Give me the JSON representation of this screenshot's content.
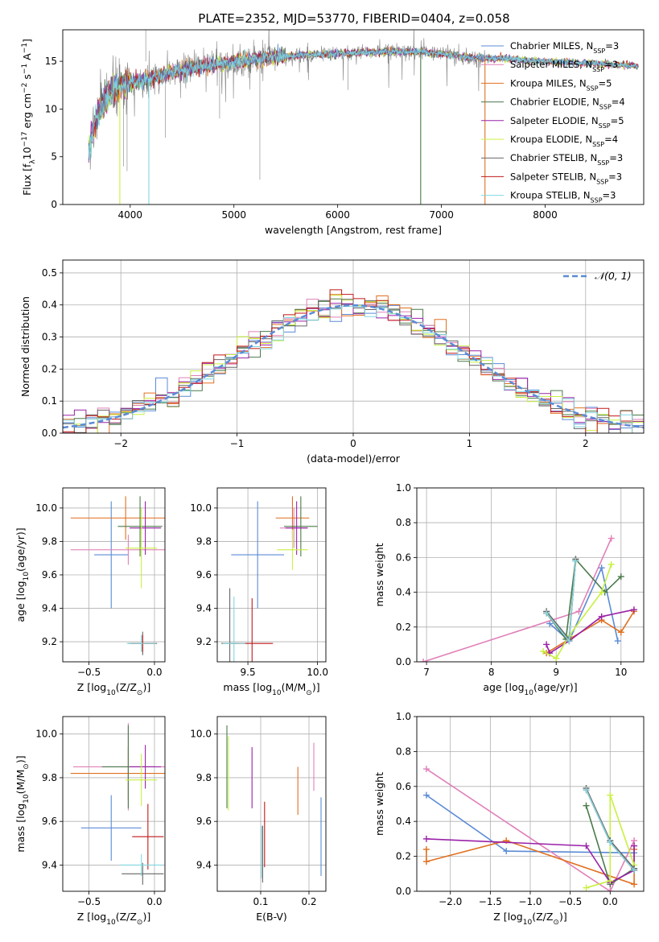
{
  "figure": {
    "title": "PLATE=2352, MJD=53770, FIBERID=0404, z=0.058"
  },
  "colors": {
    "chabrier_miles": "#5b8bd6",
    "salpeter_miles": "#e080b8",
    "kroupa_miles": "#e07020",
    "chabrier_elodie": "#4a7a4a",
    "salpeter_elodie": "#9a22a8",
    "kroupa_elodie": "#c8f040",
    "chabrier_stelib": "#666666",
    "salpeter_stelib": "#c01818",
    "kroupa_stelib": "#80d8e0",
    "data": "#808080",
    "gaussian": "#5b8bd6"
  },
  "chart_data": [
    {
      "id": "spectrum",
      "type": "line",
      "xlabel": "wavelength [Angstrom, rest frame]",
      "ylabel_parts": [
        "Flux [f",
        "λ",
        "10",
        "−17",
        " erg cm",
        "−2",
        " s",
        "−1",
        " A",
        "−1",
        "]"
      ],
      "xlim": [
        3350,
        8950
      ],
      "ylim": [
        0,
        18.3
      ],
      "xticks": [
        4000,
        5000,
        6000,
        7000,
        8000
      ],
      "yticks": [
        0,
        5,
        10,
        15
      ],
      "legend_position": "upper-right",
      "legend": [
        {
          "label": "Chabrier MILES, N",
          "sub": "SSP",
          "eq": "=3",
          "color_key": "chabrier_miles"
        },
        {
          "label": "Salpeter MILES, N",
          "sub": "SSP",
          "eq": "=3",
          "color_key": "salpeter_miles"
        },
        {
          "label": "Kroupa MILES, N",
          "sub": "SSP",
          "eq": "=5",
          "color_key": "kroupa_miles"
        },
        {
          "label": "Chabrier ELODIE, N",
          "sub": "SSP",
          "eq": "=4",
          "color_key": "chabrier_elodie"
        },
        {
          "label": "Salpeter ELODIE, N",
          "sub": "SSP",
          "eq": "=5",
          "color_key": "salpeter_elodie"
        },
        {
          "label": "Kroupa ELODIE, N",
          "sub": "SSP",
          "eq": "=4",
          "color_key": "kroupa_elodie"
        },
        {
          "label": "Chabrier STELIB, N",
          "sub": "SSP",
          "eq": "=3",
          "color_key": "chabrier_stelib"
        },
        {
          "label": "Salpeter STELIB, N",
          "sub": "SSP",
          "eq": "=3",
          "color_key": "salpeter_stelib"
        },
        {
          "label": "Kroupa STELIB, N",
          "sub": "SSP",
          "eq": "=3",
          "color_key": "kroupa_stelib"
        }
      ],
      "continuum_points": [
        [
          3600,
          6
        ],
        [
          3650,
          8
        ],
        [
          3700,
          10
        ],
        [
          3800,
          11.5
        ],
        [
          3900,
          12.5
        ],
        [
          4000,
          12.8
        ],
        [
          4100,
          13
        ],
        [
          4200,
          13.2
        ],
        [
          4400,
          13.8
        ],
        [
          4600,
          14.3
        ],
        [
          4800,
          14.7
        ],
        [
          5000,
          14.9
        ],
        [
          5200,
          15.2
        ],
        [
          5400,
          15.4
        ],
        [
          5600,
          15.6
        ],
        [
          5800,
          15.7
        ],
        [
          6000,
          15.8
        ],
        [
          6200,
          15.9
        ],
        [
          6500,
          16
        ],
        [
          6800,
          16
        ],
        [
          7000,
          15.8
        ],
        [
          7200,
          15.5
        ],
        [
          7400,
          15.3
        ],
        [
          7600,
          15.3
        ],
        [
          7800,
          15.1
        ],
        [
          8000,
          15
        ],
        [
          8200,
          14.9
        ],
        [
          8400,
          14.8
        ],
        [
          8600,
          14.7
        ],
        [
          8900,
          14.5
        ]
      ],
      "data_range": [
        3600,
        7450
      ],
      "model_range": [
        3600,
        8900
      ],
      "model_drops": [
        {
          "color_key": "kroupa_elodie",
          "x": 3900
        },
        {
          "color_key": "kroupa_stelib",
          "x": 4180
        },
        {
          "color_key": "chabrier_elodie",
          "x": 6800
        },
        {
          "color_key": "kroupa_miles",
          "x": 7420
        }
      ]
    },
    {
      "id": "residuals",
      "type": "line",
      "xlabel": "(data-model)/error",
      "ylabel": "Normed distribution",
      "xlim": [
        -2.5,
        2.5
      ],
      "ylim": [
        0,
        0.54
      ],
      "xticks": [
        -2,
        -1,
        0,
        1,
        2
      ],
      "yticks": [
        0.0,
        0.1,
        0.2,
        0.3,
        0.4,
        0.5
      ],
      "grid": true,
      "legend_position": "upper-right",
      "legend": [
        {
          "label": "𝒩(0, 1)",
          "color_key": "gaussian"
        }
      ],
      "bin_width": 0.1
    },
    {
      "id": "age_vs_Z",
      "type": "scatter",
      "xlabel": "Z [log10(Z/Z⊙)]",
      "ylabel": "age  [log10(age/yr)]",
      "xlim": [
        -0.7,
        0.08
      ],
      "ylim": [
        9.08,
        10.12
      ],
      "xticks": [
        -0.5,
        0.0
      ],
      "yticks": [
        9.2,
        9.4,
        9.6,
        9.8,
        10.0
      ],
      "grid": true,
      "points": [
        {
          "color_key": "chabrier_miles",
          "x": -0.33,
          "y": 9.72,
          "xerr": 0.13,
          "yerr": 0.32
        },
        {
          "color_key": "salpeter_miles",
          "x": -0.2,
          "y": 9.75,
          "xerr": 0.44,
          "yerr": 0.09
        },
        {
          "color_key": "kroupa_miles",
          "x": -0.22,
          "y": 9.94,
          "xerr": 0.42,
          "yerr": 0.13
        },
        {
          "color_key": "chabrier_elodie",
          "x": -0.11,
          "y": 9.89,
          "xerr": 0.17,
          "yerr": 0.18
        },
        {
          "color_key": "salpeter_elodie",
          "x": -0.07,
          "y": 9.88,
          "xerr": 0.12,
          "yerr": 0.16
        },
        {
          "color_key": "kroupa_elodie",
          "x": -0.1,
          "y": 9.76,
          "xerr": 0.12,
          "yerr": 0.24
        },
        {
          "color_key": "chabrier_stelib",
          "x": -0.09,
          "y": 9.19,
          "xerr": 0.11,
          "yerr": 0.07
        },
        {
          "color_key": "salpeter_stelib",
          "x": -0.09,
          "y": 9.19,
          "xerr": 0.09,
          "yerr": 0.05
        },
        {
          "color_key": "kroupa_stelib",
          "x": -0.1,
          "y": 9.19,
          "xerr": 0.11,
          "yerr": 0.05
        }
      ]
    },
    {
      "id": "age_vs_mass",
      "type": "scatter",
      "xlabel": "mass [log10(M/M⊙)]",
      "xlim": [
        9.28,
        10.06
      ],
      "ylim": [
        9.08,
        10.12
      ],
      "xticks": [
        9.5,
        10.0
      ],
      "yticks": [
        9.2,
        9.4,
        9.6,
        9.8,
        10.0
      ],
      "grid": true,
      "points": [
        {
          "color_key": "chabrier_miles",
          "x": 9.57,
          "y": 9.72,
          "xerr": 0.19,
          "yerr": 0.32
        },
        {
          "color_key": "salpeter_miles",
          "x": 9.83,
          "y": 9.88,
          "xerr": 0.1,
          "yerr": 0.12
        },
        {
          "color_key": "kroupa_miles",
          "x": 9.82,
          "y": 9.94,
          "xerr": 0.12,
          "yerr": 0.13
        },
        {
          "color_key": "chabrier_elodie",
          "x": 9.88,
          "y": 9.89,
          "xerr": 0.12,
          "yerr": 0.18
        },
        {
          "color_key": "salpeter_elodie",
          "x": 9.85,
          "y": 9.88,
          "xerr": 0.08,
          "yerr": 0.16
        },
        {
          "color_key": "kroupa_elodie",
          "x": 9.82,
          "y": 9.75,
          "xerr": 0.11,
          "yerr": 0.12
        },
        {
          "color_key": "chabrier_stelib",
          "x": 9.37,
          "y": 9.19,
          "xerr": 0.06,
          "yerr": 0.33
        },
        {
          "color_key": "salpeter_stelib",
          "x": 9.53,
          "y": 9.19,
          "xerr": 0.15,
          "yerr": 0.27
        },
        {
          "color_key": "kroupa_stelib",
          "x": 9.4,
          "y": 9.19,
          "xerr": 0.08,
          "yerr": 0.28
        }
      ]
    },
    {
      "id": "weight_vs_age",
      "type": "line",
      "xlabel": "age  [log10(age/yr)]",
      "ylabel": "mass weight",
      "xlim": [
        6.85,
        10.35
      ],
      "ylim": [
        0,
        1
      ],
      "xticks": [
        7,
        8,
        9,
        10
      ],
      "yticks": [
        0.0,
        0.2,
        0.4,
        0.6,
        0.8,
        1.0
      ],
      "grid": true,
      "series": [
        {
          "color_key": "chabrier_miles",
          "x": [
            8.9,
            9.2,
            9.7,
            9.95
          ],
          "y": [
            0.22,
            0.12,
            0.54,
            0.12
          ]
        },
        {
          "color_key": "salpeter_miles",
          "x": [
            6.95,
            9.35,
            9.85
          ],
          "y": [
            0.0,
            0.29,
            0.71
          ]
        },
        {
          "color_key": "kroupa_miles",
          "x": [
            8.85,
            9.2,
            9.7,
            10.0,
            10.2
          ],
          "y": [
            0.05,
            0.13,
            0.24,
            0.17,
            0.29
          ]
        },
        {
          "color_key": "chabrier_elodie",
          "x": [
            8.85,
            9.15,
            9.3,
            9.75,
            10.0
          ],
          "y": [
            0.28,
            0.13,
            0.59,
            0.4,
            0.49
          ]
        },
        {
          "color_key": "salpeter_elodie",
          "x": [
            8.85,
            8.9,
            9.2,
            9.7,
            10.2
          ],
          "y": [
            0.1,
            0.05,
            0.12,
            0.26,
            0.3
          ]
        },
        {
          "color_key": "kroupa_elodie",
          "x": [
            8.8,
            9.0,
            9.2,
            9.7,
            9.85
          ],
          "y": [
            0.06,
            0.02,
            0.15,
            0.4,
            0.56
          ]
        },
        {
          "color_key": "chabrier_stelib",
          "x": [
            8.85,
            9.2,
            9.3
          ],
          "y": [
            0.29,
            0.13,
            0.59
          ]
        },
        {
          "color_key": "salpeter_stelib",
          "x": [
            8.85,
            9.2,
            9.3
          ],
          "y": [
            0.28,
            0.12,
            0.58
          ]
        },
        {
          "color_key": "kroupa_stelib",
          "x": [
            8.85,
            9.2,
            9.3
          ],
          "y": [
            0.28,
            0.12,
            0.58
          ]
        }
      ]
    },
    {
      "id": "mass_vs_Z",
      "type": "scatter",
      "xlabel": "Z [log10(Z/Z⊙)]",
      "ylabel": "mass [log10(M/M⊙)]",
      "xlim": [
        -0.7,
        0.08
      ],
      "ylim": [
        9.28,
        10.08
      ],
      "xticks": [
        -0.5,
        0.0
      ],
      "yticks": [
        9.4,
        9.6,
        9.8,
        10.0
      ],
      "grid": true,
      "points": [
        {
          "color_key": "chabrier_miles",
          "x": -0.33,
          "y": 9.57,
          "xerr": 0.23,
          "yerr": 0.15
        },
        {
          "color_key": "salpeter_miles",
          "x": -0.2,
          "y": 9.85,
          "xerr": 0.42,
          "yerr": 0.2
        },
        {
          "color_key": "kroupa_miles",
          "x": -0.2,
          "y": 9.82,
          "xerr": 0.44,
          "yerr": 0.12
        },
        {
          "color_key": "chabrier_elodie",
          "x": -0.2,
          "y": 9.85,
          "xerr": 0.2,
          "yerr": 0.19
        },
        {
          "color_key": "salpeter_elodie",
          "x": -0.07,
          "y": 9.85,
          "xerr": 0.12,
          "yerr": 0.1
        },
        {
          "color_key": "kroupa_elodie",
          "x": -0.1,
          "y": 9.79,
          "xerr": 0.12,
          "yerr": 0.12
        },
        {
          "color_key": "chabrier_stelib",
          "x": -0.09,
          "y": 9.36,
          "xerr": 0.16,
          "yerr": 0.05
        },
        {
          "color_key": "salpeter_stelib",
          "x": -0.05,
          "y": 9.53,
          "xerr": 0.12,
          "yerr": 0.15
        },
        {
          "color_key": "kroupa_stelib",
          "x": -0.1,
          "y": 9.4,
          "xerr": 0.16,
          "yerr": 0.05
        }
      ]
    },
    {
      "id": "mass_vs_ebv",
      "type": "scatter",
      "xlabel": "E(B-V)",
      "xlim": [
        0.01,
        0.235
      ],
      "ylim": [
        9.28,
        10.08
      ],
      "xticks": [
        0.1,
        0.2
      ],
      "yticks": [
        9.4,
        9.6,
        9.8,
        10.0
      ],
      "grid": true,
      "points": [
        {
          "color_key": "chabrier_miles",
          "x": 0.225,
          "y": 9.53,
          "yerr": 0.18
        },
        {
          "color_key": "salpeter_miles",
          "x": 0.21,
          "y": 9.85,
          "yerr": 0.11
        },
        {
          "color_key": "kroupa_miles",
          "x": 0.177,
          "y": 9.74,
          "yerr": 0.11
        },
        {
          "color_key": "chabrier_elodie",
          "x": 0.03,
          "y": 9.85,
          "yerr": 0.19
        },
        {
          "color_key": "salpeter_elodie",
          "x": 0.082,
          "y": 9.8,
          "yerr": 0.14
        },
        {
          "color_key": "kroupa_elodie",
          "x": 0.033,
          "y": 9.82,
          "yerr": 0.17
        },
        {
          "color_key": "chabrier_stelib",
          "x": 0.104,
          "y": 9.45,
          "yerr": 0.13
        },
        {
          "color_key": "salpeter_stelib",
          "x": 0.108,
          "y": 9.54,
          "yerr": 0.15
        },
        {
          "color_key": "kroupa_stelib",
          "x": 0.102,
          "y": 9.46,
          "yerr": 0.12
        }
      ]
    },
    {
      "id": "weight_vs_Z",
      "type": "line",
      "xlabel": "Z [log10(Z/Z⊙)]",
      "ylabel": "mass weight",
      "xlim": [
        -2.42,
        0.42
      ],
      "ylim": [
        0,
        1
      ],
      "xticks": [
        -2.0,
        -1.5,
        -1.0,
        -0.5,
        0.0
      ],
      "yticks": [
        0.0,
        0.2,
        0.4,
        0.6,
        0.8,
        1.0
      ],
      "grid": true,
      "series": [
        {
          "color_key": "chabrier_miles",
          "x": [
            -2.3,
            -1.3,
            0.3
          ],
          "y": [
            0.55,
            0.23,
            0.22
          ]
        },
        {
          "color_key": "salpeter_miles",
          "x": [
            -2.3,
            0.0,
            0.3
          ],
          "y": [
            0.7,
            0.0,
            0.29
          ]
        },
        {
          "color_key": "kroupa_miles",
          "x": [
            -2.3,
            -2.3,
            -1.3,
            0.3,
            0.3
          ],
          "y": [
            0.24,
            0.17,
            0.29,
            0.04,
            0.24
          ]
        },
        {
          "color_key": "chabrier_elodie",
          "x": [
            -0.3,
            0.0,
            0.3
          ],
          "y": [
            0.49,
            0.04,
            0.13
          ]
        },
        {
          "color_key": "salpeter_elodie",
          "x": [
            -2.3,
            -0.3,
            0.0,
            0.3,
            0.3
          ],
          "y": [
            0.3,
            0.26,
            0.05,
            0.12,
            0.26
          ]
        },
        {
          "color_key": "kroupa_elodie",
          "x": [
            -0.3,
            0.0,
            0.0,
            0.3
          ],
          "y": [
            0.02,
            0.06,
            0.55,
            0.15
          ]
        },
        {
          "color_key": "chabrier_stelib",
          "x": [
            -0.3,
            0.0,
            0.3
          ],
          "y": [
            0.59,
            0.29,
            0.13
          ]
        },
        {
          "color_key": "salpeter_stelib",
          "x": [
            -0.3,
            0.0,
            0.3
          ],
          "y": [
            0.58,
            0.28,
            0.12
          ]
        },
        {
          "color_key": "kroupa_stelib",
          "x": [
            -0.3,
            0.0,
            0.3
          ],
          "y": [
            0.58,
            0.28,
            0.12
          ]
        }
      ]
    }
  ]
}
